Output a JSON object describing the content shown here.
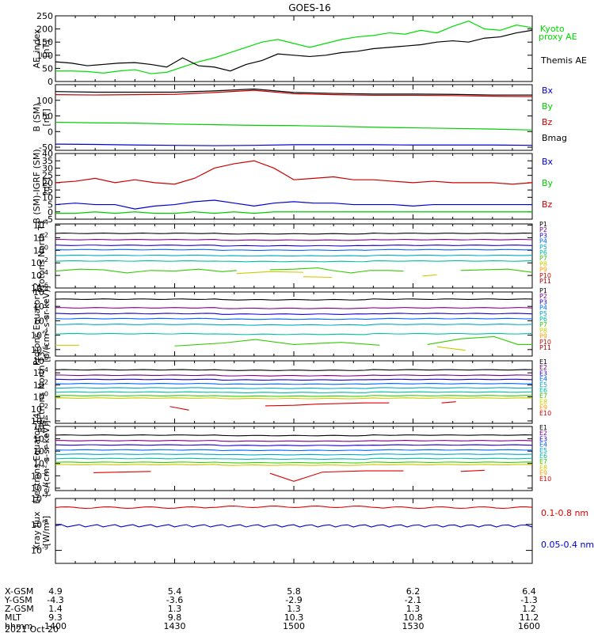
{
  "figure": {
    "title": "GOES-16",
    "date": "2021 Oct 20"
  },
  "chart_data": [
    {
      "type": "line",
      "ylabel": "AE_index [nT]",
      "ylim": [
        0,
        250
      ],
      "yticks": [
        "250",
        "200",
        "150",
        "100",
        "50",
        "0"
      ],
      "x": [
        "14:00",
        "14:04",
        "14:08",
        "14:12",
        "14:16",
        "14:20",
        "14:24",
        "14:28",
        "14:32",
        "14:36",
        "14:40",
        "14:44",
        "14:48",
        "14:52",
        "14:56",
        "15:00",
        "15:04",
        "15:08",
        "15:12",
        "15:16",
        "15:20",
        "15:24",
        "15:28",
        "15:32",
        "15:36",
        "15:40",
        "15:44",
        "15:48",
        "15:52",
        "15:56",
        "16:00"
      ],
      "series": [
        {
          "name": "Kyoto proxy AE",
          "color": "#00dd00",
          "values": [
            40,
            40,
            38,
            32,
            40,
            45,
            30,
            35,
            55,
            75,
            90,
            110,
            130,
            150,
            160,
            145,
            130,
            145,
            160,
            170,
            175,
            185,
            180,
            195,
            185,
            210,
            230,
            200,
            195,
            215,
            205
          ]
        },
        {
          "name": "Themis AE",
          "color": "#000000",
          "values": [
            75,
            70,
            60,
            65,
            70,
            72,
            65,
            55,
            90,
            60,
            55,
            40,
            65,
            80,
            105,
            100,
            95,
            100,
            110,
            115,
            125,
            130,
            135,
            140,
            150,
            155,
            150,
            165,
            170,
            185,
            195
          ]
        }
      ]
    },
    {
      "type": "line",
      "ylabel": "B (SM) [nT]",
      "ylim": [
        -60,
        150
      ],
      "yticks": [
        "100",
        "50",
        "0",
        "-50"
      ],
      "x": [
        "14:00",
        "14:10",
        "14:20",
        "14:30",
        "14:40",
        "14:50",
        "15:00",
        "15:10",
        "15:20",
        "15:30",
        "15:40",
        "15:50",
        "16:00"
      ],
      "series": [
        {
          "name": "Bx",
          "color": "#0000cc",
          "values": [
            -40,
            -41,
            -43,
            -44,
            -45,
            -44,
            -42,
            -42,
            -42,
            -43,
            -43,
            -43,
            -44
          ]
        },
        {
          "name": "By",
          "color": "#00cc00",
          "values": [
            30,
            28,
            27,
            24,
            22,
            20,
            19,
            17,
            14,
            12,
            10,
            8,
            5
          ]
        },
        {
          "name": "Bz",
          "color": "#cc0000",
          "values": [
            118,
            117,
            118,
            119,
            125,
            132,
            121,
            118,
            116,
            116,
            115,
            113,
            112
          ]
        },
        {
          "name": "Bmag",
          "color": "#000000",
          "values": [
            128,
            126,
            126,
            126,
            130,
            136,
            125,
            122,
            120,
            120,
            119,
            117,
            117
          ]
        }
      ]
    },
    {
      "type": "line",
      "ylabel": "B (SM)-IGRF (SM) [nT]",
      "ylim": [
        -5,
        40
      ],
      "yticks": [
        "40",
        "35",
        "30",
        "25",
        "20",
        "15",
        "10",
        "5",
        "0",
        "-5"
      ],
      "x": [
        "14:00",
        "14:05",
        "14:10",
        "14:15",
        "14:20",
        "14:25",
        "14:30",
        "14:35",
        "14:40",
        "14:45",
        "14:50",
        "14:55",
        "15:00",
        "15:05",
        "15:10",
        "15:15",
        "15:20",
        "15:25",
        "15:30",
        "15:35",
        "15:40",
        "15:45",
        "15:50",
        "15:55",
        "16:00"
      ],
      "series": [
        {
          "name": "Bx",
          "color": "#0000cc",
          "values": [
            5,
            6,
            5,
            5,
            2,
            4,
            5,
            7,
            8,
            6,
            4,
            6,
            7,
            6,
            6,
            5,
            5,
            5,
            4,
            5,
            5,
            5,
            5,
            5,
            5
          ]
        },
        {
          "name": "By",
          "color": "#00cc00",
          "values": [
            -1,
            -1,
            0,
            -1,
            0,
            -1,
            -1,
            0,
            -1,
            0,
            -1,
            0,
            0,
            0,
            0,
            0,
            0,
            0,
            0,
            0,
            0,
            0,
            0,
            0,
            0
          ]
        },
        {
          "name": "Bz",
          "color": "#cc0000",
          "values": [
            20,
            21,
            23,
            20,
            22,
            20,
            19,
            23,
            30,
            33,
            35,
            30,
            22,
            23,
            24,
            22,
            22,
            21,
            20,
            21,
            20,
            20,
            20,
            19,
            20
          ]
        }
      ]
    }
  ],
  "panels": {
    "p4": {
      "ylabel": "Protons North T1",
      "yticks": [
        "10^4",
        "10^2",
        "10^0",
        "10^-2",
        "10^-4",
        "10^-6"
      ],
      "legend": [
        "P1",
        "P2",
        "P3",
        "P4",
        "P5",
        "P6",
        "P7",
        "P8",
        "P9",
        "P10",
        "P11"
      ]
    },
    "p5": {
      "ylabel": "Protons Equator T2 [p/(cm²-s-sr-keV)]",
      "yticks": [
        "10^4",
        "10^2",
        "10^0",
        "10^-2",
        "10^-4"
      ],
      "legend": [
        "P1",
        "P2",
        "P3",
        "P4",
        "P5",
        "P6",
        "P7",
        "P8",
        "P9",
        "P10",
        "P11"
      ]
    },
    "p6": {
      "ylabel": "Electrons North T3",
      "yticks": [
        "10^6",
        "10^4",
        "10^2",
        "10^0",
        "10^-2",
        "10^-4"
      ],
      "legend": [
        "E1",
        "E2",
        "E3",
        "E4",
        "E5",
        "E6",
        "E7",
        "E8",
        "E9",
        "E10"
      ]
    },
    "p7": {
      "ylabel": "Electrons Equator T4 [e/(cm²-s-sr-keV)]",
      "yticks": [
        "10^6",
        "10^4",
        "10^2",
        "10^0",
        "10^-2",
        "10^-4"
      ],
      "legend": [
        "E1",
        "E2",
        "E3",
        "E4",
        "E5",
        "E6",
        "E7",
        "E8",
        "E9",
        "E10"
      ]
    },
    "p8": {
      "ylabel": "Xray flux [W/m²]",
      "yticks": [
        "10^-7",
        "10^-8",
        "10^-9"
      ],
      "legend": [
        "0.1-0.8 nm",
        "0.05-0.4 nm"
      ]
    }
  },
  "axis_rows": {
    "labels": [
      "X-GSM",
      "Y-GSM",
      "Z-GSM",
      "MLT",
      "hhmm"
    ],
    "columns": [
      [
        "4.9",
        "-4.3",
        "1.4",
        "9.3",
        "1400"
      ],
      [
        "5.4",
        "-3.6",
        "1.3",
        "9.8",
        "1430"
      ],
      [
        "5.8",
        "-2.9",
        "1.3",
        "10.3",
        "1500"
      ],
      [
        "6.2",
        "-2.1",
        "1.3",
        "10.8",
        "1530"
      ],
      [
        "6.4",
        "-1.3",
        "1.2",
        "11.2",
        "1600"
      ]
    ]
  },
  "colors": {
    "channels": [
      "#000000",
      "#7a0080",
      "#1a00cc",
      "#0066ff",
      "#00a8c8",
      "#00c0a0",
      "#33cc00",
      "#cccc00",
      "#ff9900",
      "#dd0000",
      "#aa0000"
    ]
  }
}
